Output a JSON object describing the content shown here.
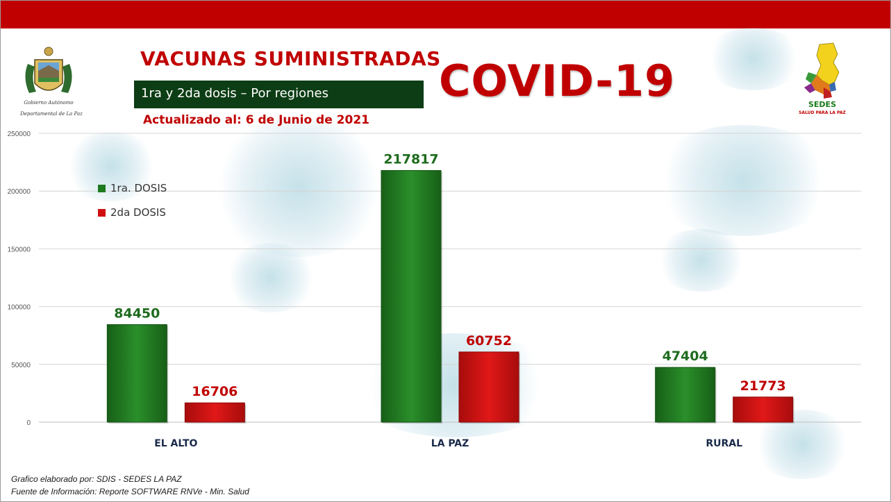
{
  "header": {
    "main_title": "VACUNAS  SUMINISTRADAS",
    "subtitle": "1ra y 2da dosis – Por regiones",
    "updated": "Actualizado al: 6 de Junio de 2021",
    "covid_title": "COVID-19"
  },
  "logos": {
    "left_line1": "Gobierno Autónomo",
    "left_line2": "Departamental de La Paz",
    "right_name": "SEDES",
    "right_tagline": "SALUD PARA LA PAZ"
  },
  "footer": {
    "line1": "Grafico elaborado por: SDIS - SEDES LA PAZ",
    "line2": "Fuente de Información: Reporte SOFTWARE RNVe - Min. Salud"
  },
  "colors": {
    "accent_red": "#c00000",
    "dose1_green": "#1e7a1e",
    "dose2_red": "#d01010",
    "subtitle_bg": "#0d3d14"
  },
  "chart_data": {
    "type": "bar",
    "categories": [
      "EL ALTO",
      "LA PAZ",
      "RURAL"
    ],
    "series": [
      {
        "name": "1ra. DOSIS",
        "values": [
          84450,
          217817,
          47404
        ],
        "color": "#1e7a1e",
        "label_color": "#1e6b1e"
      },
      {
        "name": "2da DOSIS",
        "values": [
          16706,
          60752,
          21773
        ],
        "color": "#d01010",
        "label_color": "#c00000"
      }
    ],
    "ylim": [
      0,
      250000
    ],
    "yticks": [
      0,
      50000,
      100000,
      150000,
      200000,
      250000
    ],
    "ytick_labels": [
      "0",
      "50000",
      "100000",
      "150000",
      "200000",
      "250000"
    ],
    "grid": true,
    "legend_position": "top-left"
  }
}
